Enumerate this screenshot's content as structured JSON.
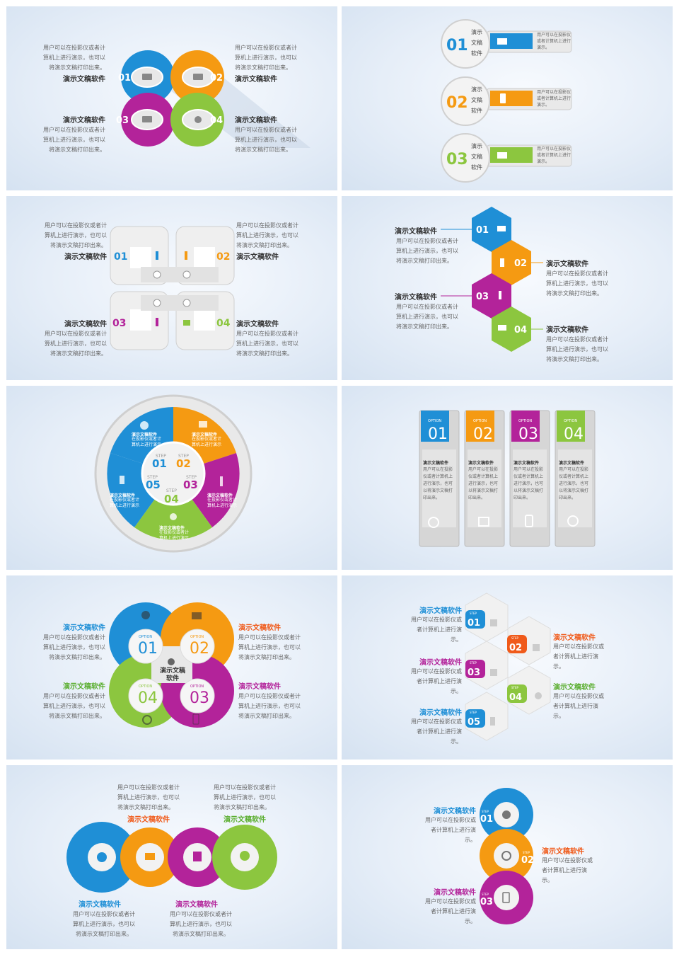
{
  "colors": {
    "blue": "#1f8fd6",
    "orange": "#f59a12",
    "magenta": "#b3239a",
    "green": "#8cc63f",
    "gray": "#bfbfbf"
  },
  "body_text": "用户可以在投影仪或者计\n算机上进行演示，也可以\n将演示文稿打印出来。",
  "title_text": "演示文稿软件",
  "slide1": {
    "nums": [
      "01",
      "02",
      "03",
      "04"
    ]
  },
  "slide2": {
    "nums": [
      "01",
      "02",
      "03"
    ],
    "label": "演示\n文稿\n软件",
    "desc": "用户可以在投影仪\n或者计算机上进行\n演示。"
  },
  "slide3": {
    "nums": [
      "01",
      "02",
      "03",
      "04"
    ]
  },
  "slide4": {
    "nums": [
      "01",
      "02",
      "03",
      "04"
    ]
  },
  "slide5": {
    "step": "STEP",
    "nums": [
      "01",
      "02",
      "03",
      "04",
      "05"
    ],
    "wedge_title": "演示文稿软件",
    "wedge_text": "在投影仪或者计\n算机上进行演示"
  },
  "slide6": {
    "option": "OPTION",
    "nums": [
      "01",
      "02",
      "03",
      "04"
    ],
    "card_text": "用户可以在投影\n仪或者计算机上\n进行演示，也可\n以将演示文稿打\n印出来。"
  },
  "slide7": {
    "option": "OPTION",
    "nums": [
      "01",
      "02",
      "03",
      "04"
    ],
    "center": "演示文稿\n软件"
  },
  "slide8": {
    "step": "STEP",
    "nums": [
      "01",
      "02",
      "03",
      "04",
      "05"
    ],
    "text": "用户可以在投影仪或\n者计算机上进行演\n示。"
  },
  "slide9": {
    "icons": [
      "lightbulb-head-icon",
      "presentation-icon",
      "chart-icon",
      "bulb-icon"
    ]
  },
  "slide10": {
    "step": "STEP",
    "nums": [
      "01",
      "02",
      "03"
    ],
    "text": "用户可以在投影仪或\n者计算机上进行演\n示。"
  }
}
